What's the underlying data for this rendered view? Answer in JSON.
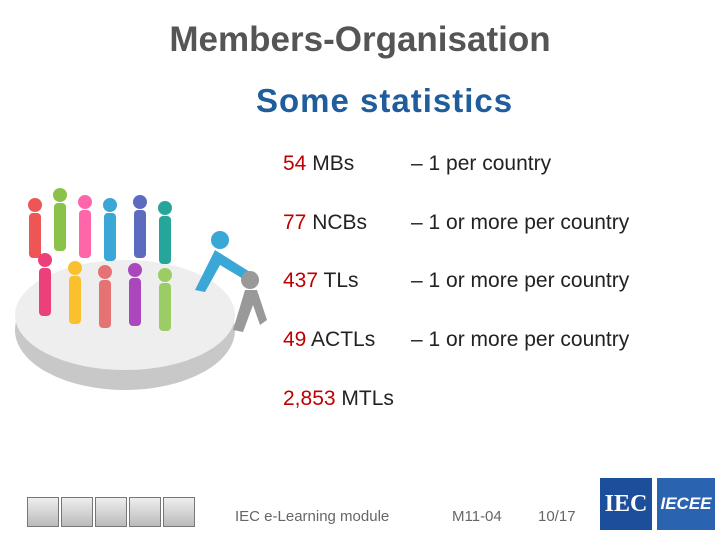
{
  "header": {
    "title": "Members-Organisation",
    "subtitle": "Some statistics"
  },
  "stats": [
    {
      "number": "54",
      "label": "MBs",
      "description": "– 1 per country"
    },
    {
      "number": "77",
      "label": "NCBs",
      "description": "– 1 or more per country"
    },
    {
      "number": "437",
      "label": "TLs",
      "description": "– 1 or more per country"
    },
    {
      "number": "49",
      "label": "ACTLs",
      "description": "– 1 or more per country"
    },
    {
      "number": "2,853",
      "label": "MTLs"
    }
  ],
  "footer": {
    "module": "IEC e-Learning module",
    "code": "M11-04",
    "page": "10/17",
    "logo_iec": "IEC",
    "logo_iecee": "IECEE"
  }
}
